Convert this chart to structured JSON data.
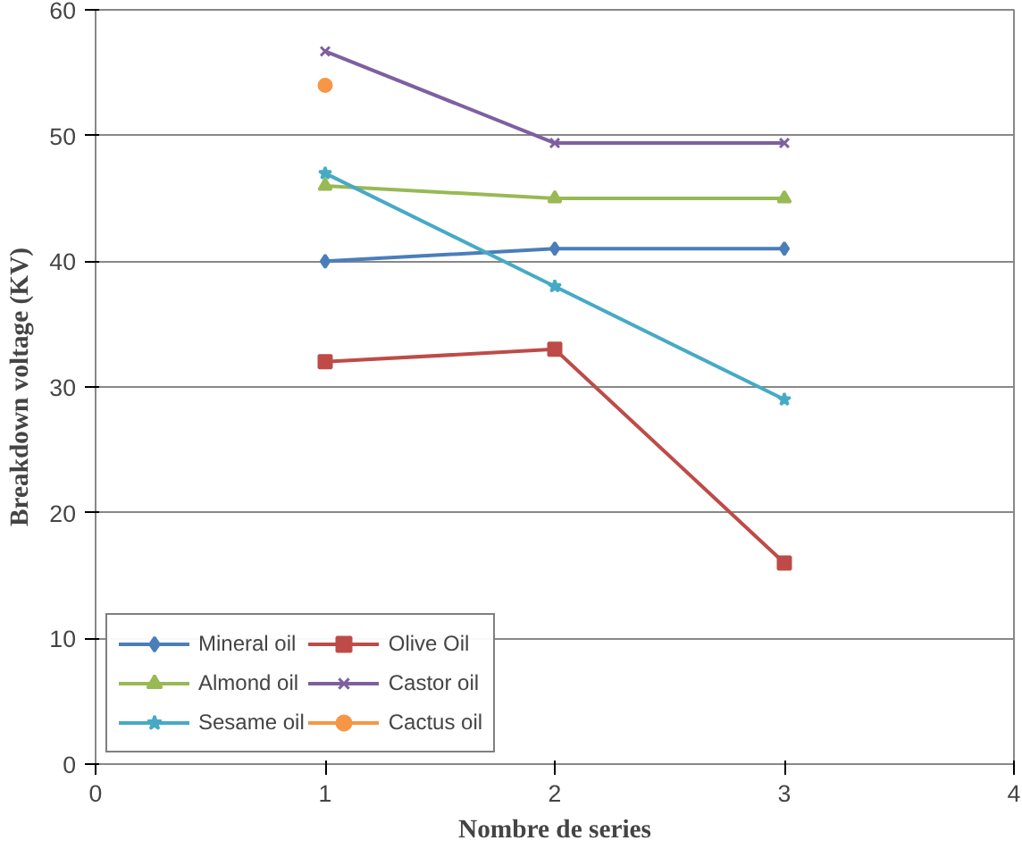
{
  "chart_data": {
    "type": "line",
    "xlabel": "Nombre de series",
    "ylabel": "Breakdown voltage (KV)",
    "x": [
      1,
      2,
      3
    ],
    "xlim": [
      0,
      4
    ],
    "xticks": [
      0,
      1,
      2,
      3,
      4
    ],
    "ylim": [
      0,
      60
    ],
    "yticks": [
      0,
      10,
      20,
      30,
      40,
      50,
      60
    ],
    "grid": "y",
    "legend": "bottom left",
    "series": [
      {
        "name": "Mineral oil",
        "color": "#4a7ebb",
        "marker": "diamond",
        "values": [
          40,
          41,
          41
        ]
      },
      {
        "name": "Olive Oil",
        "color": "#be4b48",
        "marker": "square",
        "values": [
          32,
          33,
          16
        ]
      },
      {
        "name": "Almond oil",
        "color": "#98b954",
        "marker": "triangle",
        "values": [
          46,
          45,
          45
        ]
      },
      {
        "name": "Castor oil",
        "color": "#7d60a0",
        "marker": "cross",
        "values": [
          56.7,
          49.4,
          49.4
        ]
      },
      {
        "name": "Sesame oil",
        "color": "#46aac5",
        "marker": "star",
        "values": [
          47,
          38,
          29
        ]
      },
      {
        "name": "Cactus oil",
        "color": "#f79646",
        "marker": "circle",
        "values": [
          54,
          null,
          null
        ]
      }
    ]
  }
}
